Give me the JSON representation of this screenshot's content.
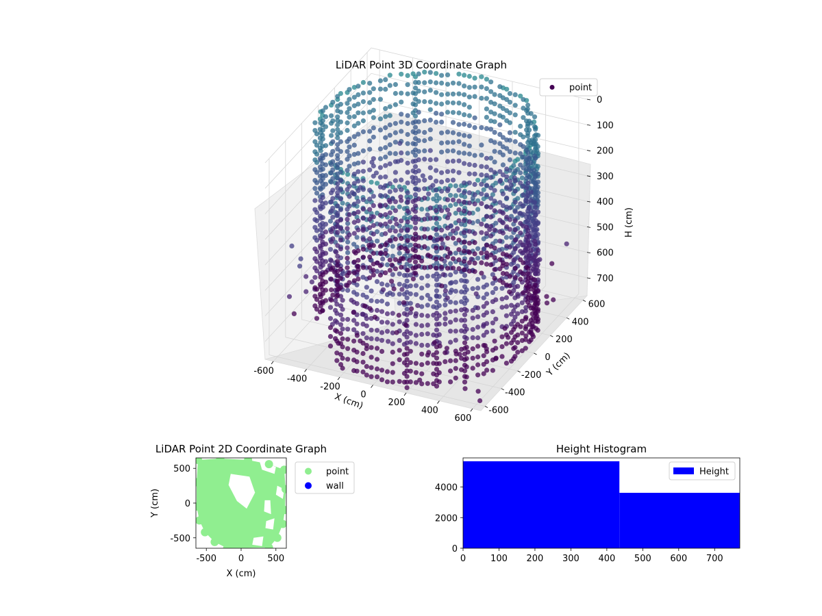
{
  "chart_data": [
    {
      "type": "scatter",
      "projection": "3d",
      "title": "LiDAR Point 3D Coordinate Graph",
      "xlabel": "X (cm)",
      "ylabel": "Y (cm)",
      "zlabel": "H (cm)",
      "xlim": [
        -650,
        650
      ],
      "ylim": [
        -650,
        650
      ],
      "zlim": [
        0,
        770
      ],
      "z_inverted": true,
      "xticks": [
        -600,
        -400,
        -200,
        0,
        200,
        400,
        600
      ],
      "yticks": [
        -600,
        -400,
        -200,
        0,
        200,
        400,
        600
      ],
      "zticks": [
        0,
        100,
        200,
        300,
        400,
        500,
        600,
        700
      ],
      "colormap": "viridis",
      "legend": "top-right",
      "series": [
        {
          "name": "point",
          "color": "#440154",
          "structure": "points on a cylindrical wall of radius ~600 cm with vertical columns spanning 0-770 cm height, plus scattered points",
          "wall_radius": 600,
          "wall_angle_gap_deg": [
            200,
            235
          ],
          "height_range": [
            0,
            770
          ],
          "columns_visible": [
            {
              "x": 180,
              "y": -600,
              "h": [
                0,
                770
              ]
            },
            {
              "x": 320,
              "y": -520,
              "h": [
                0,
                770
              ]
            },
            {
              "x": 440,
              "y": -420,
              "h": [
                0,
                770
              ]
            },
            {
              "x": -300,
              "y": 480,
              "h": [
                0,
                770
              ]
            }
          ],
          "scatter_samples": [
            {
              "x": -640,
              "y": 210,
              "h": 760
            },
            {
              "x": -560,
              "y": 300,
              "h": 720
            },
            {
              "x": -500,
              "y": 420,
              "h": 740
            },
            {
              "x": -380,
              "y": 520,
              "h": 700
            },
            {
              "x": -250,
              "y": 560,
              "h": 650
            },
            {
              "x": -600,
              "y": 100,
              "h": 680
            },
            {
              "x": 100,
              "y": -100,
              "h": 380
            },
            {
              "x": 300,
              "y": 100,
              "h": 450
            },
            {
              "x": 450,
              "y": 300,
              "h": 500
            },
            {
              "x": 520,
              "y": -200,
              "h": 740
            },
            {
              "x": 560,
              "y": -500,
              "h": 760
            },
            {
              "x": 600,
              "y": -560,
              "h": 770
            },
            {
              "x": 400,
              "y": -300,
              "h": 700
            }
          ]
        }
      ]
    },
    {
      "type": "scatter",
      "title": "LiDAR Point 2D Coordinate Graph",
      "xlabel": "X (cm)",
      "ylabel": "Y (cm)",
      "xlim": [
        -650,
        650
      ],
      "ylim": [
        -650,
        650
      ],
      "xticks": [
        -500,
        0,
        500
      ],
      "yticks": [
        -500,
        0,
        500
      ],
      "legend": "outside right",
      "series": [
        {
          "name": "point",
          "color": "#90ee90",
          "outline": [
            [
              -620,
              620
            ],
            [
              -300,
              640
            ],
            [
              100,
              620
            ],
            [
              400,
              560
            ],
            [
              620,
              480
            ],
            [
              640,
              200
            ],
            [
              630,
              -100
            ],
            [
              600,
              -300
            ],
            [
              520,
              -500
            ],
            [
              400,
              -640
            ],
            [
              -200,
              -650
            ],
            [
              -380,
              -560
            ],
            [
              -520,
              -420
            ],
            [
              -600,
              -250
            ],
            [
              -640,
              -50
            ],
            [
              -640,
              300
            ]
          ],
          "holes": [
            [
              [
                -150,
                420
              ],
              [
                120,
                380
              ],
              [
                200,
                150
              ],
              [
                80,
                -80
              ],
              [
                -60,
                30
              ],
              [
                -180,
                260
              ]
            ],
            [
              [
                260,
                620
              ],
              [
                500,
                520
              ],
              [
                480,
                420
              ],
              [
                300,
                480
              ]
            ],
            [
              [
                520,
                250
              ],
              [
                620,
                200
              ],
              [
                600,
                60
              ],
              [
                500,
                120
              ]
            ],
            [
              [
                340,
                40
              ],
              [
                420,
                40
              ],
              [
                430,
                -160
              ],
              [
                330,
                -120
              ]
            ],
            [
              [
                360,
                -260
              ],
              [
                480,
                -220
              ],
              [
                460,
                -380
              ],
              [
                350,
                -360
              ]
            ],
            [
              [
                180,
                -500
              ],
              [
                320,
                -480
              ],
              [
                300,
                -620
              ],
              [
                160,
                -600
              ]
            ]
          ]
        },
        {
          "name": "wall",
          "color": "#0000ff",
          "values": []
        }
      ]
    },
    {
      "type": "bar",
      "subtype": "histogram",
      "title": "Height Histogram",
      "xlim": [
        0,
        770
      ],
      "ylim": [
        0,
        5900
      ],
      "xticks": [
        0,
        100,
        200,
        300,
        400,
        500,
        600,
        700
      ],
      "yticks": [
        0,
        2000,
        4000
      ],
      "legend": "top-right",
      "series": [
        {
          "name": "Height",
          "color": "#0000ff",
          "bins": [
            0,
            435,
            770
          ],
          "values": [
            5680,
            3620
          ]
        }
      ]
    }
  ]
}
